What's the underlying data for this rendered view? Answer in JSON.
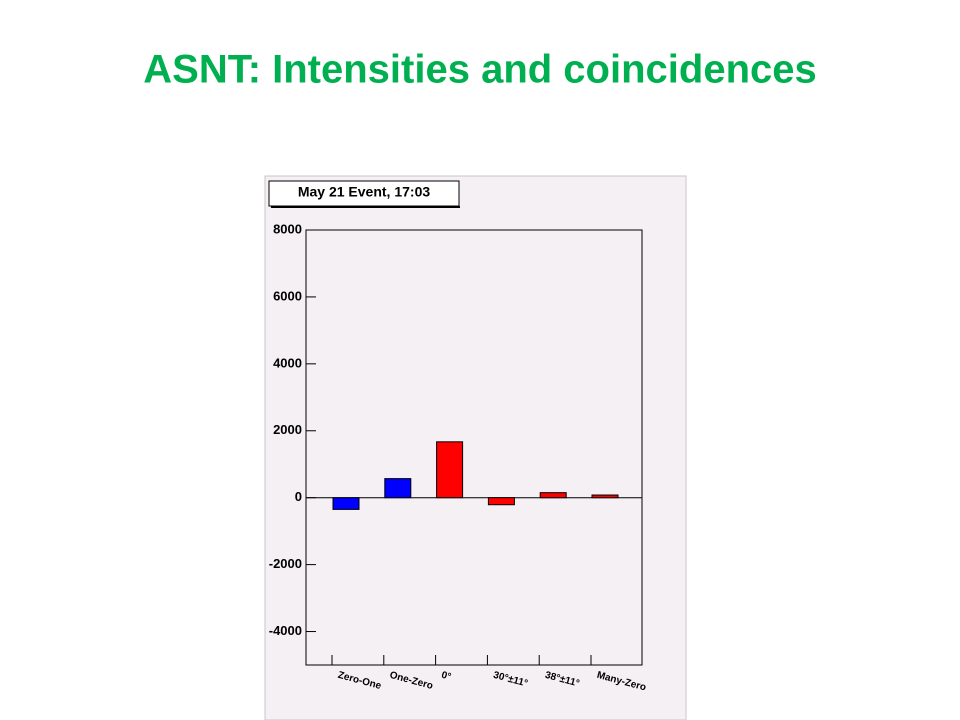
{
  "header": {
    "title": "ASNT:  Intensities and coincidences"
  },
  "chart_data": {
    "type": "bar",
    "title": "May 21 Event, 17:03",
    "categories": [
      "Zero-One",
      "One-Zero",
      "0°",
      "30°±11°",
      "38°±11°",
      "Many-Zero"
    ],
    "values": [
      -350,
      570,
      1670,
      -210,
      150,
      80
    ],
    "colors": [
      "#0000ff",
      "#0000ff",
      "#ff0000",
      "#ff0000",
      "#ff0000",
      "#ff0000"
    ],
    "ylim": [
      -5000,
      8000
    ],
    "yticks": [
      -4000,
      -2000,
      0,
      2000,
      4000,
      6000,
      8000
    ]
  }
}
